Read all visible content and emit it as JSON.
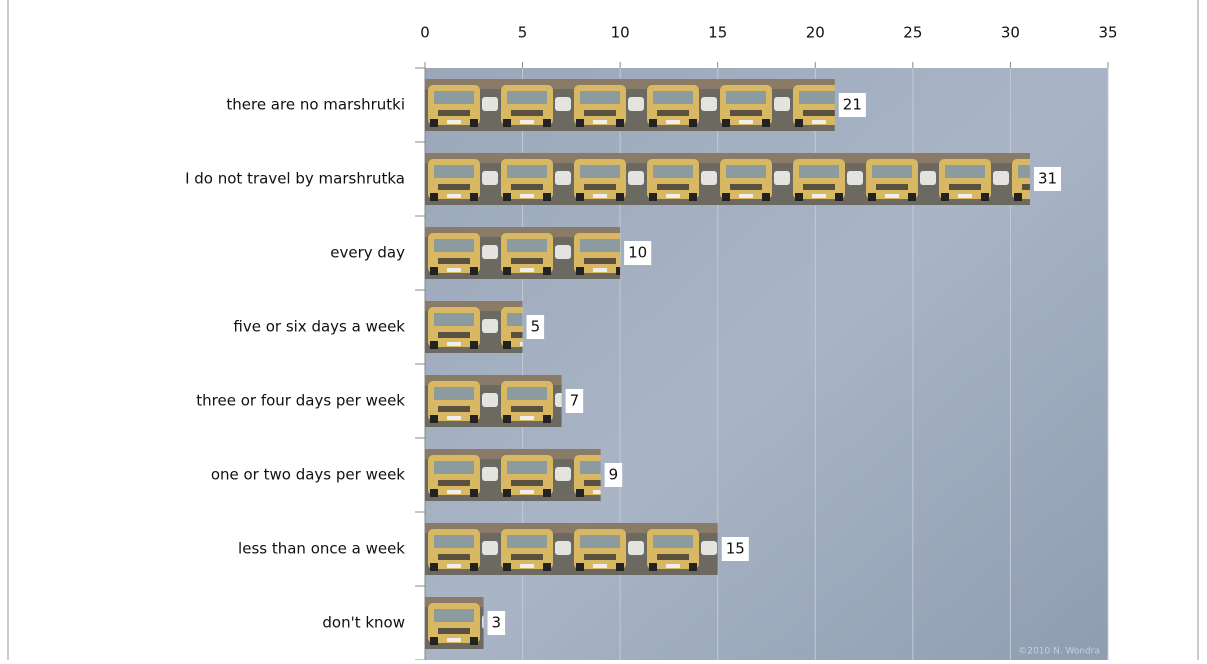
{
  "chart_data": {
    "type": "bar",
    "orientation": "horizontal",
    "categories": [
      "there are no marshrutki",
      "I do not travel by marshrutka",
      "every day",
      "five or six days a week",
      "three or four days per week",
      "one or two days per week",
      "less than once a week",
      "don't know"
    ],
    "values": [
      21,
      31,
      10,
      5,
      7,
      9,
      15,
      3
    ],
    "xlim": [
      0,
      35
    ],
    "xticks": [
      0,
      5,
      10,
      15,
      20,
      25,
      30,
      35
    ],
    "grid": true,
    "credit": "©2010 N. Wondra"
  }
}
